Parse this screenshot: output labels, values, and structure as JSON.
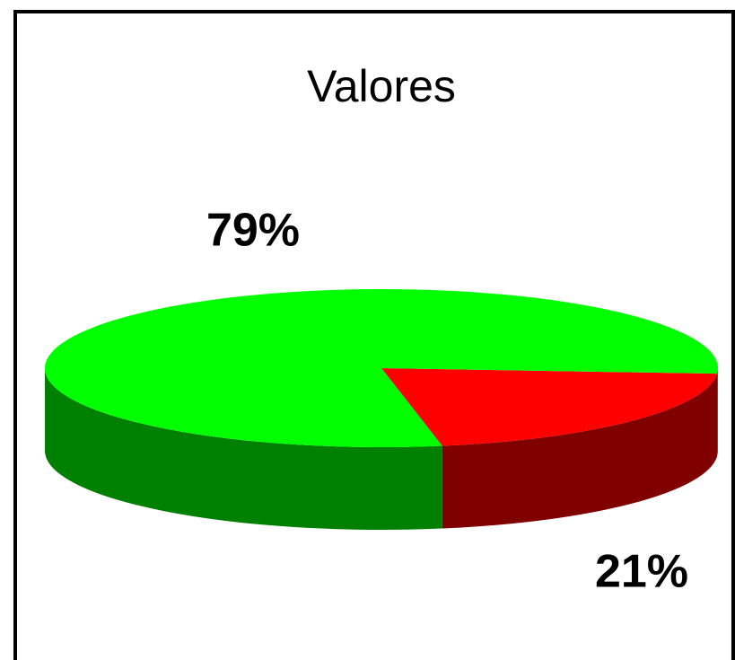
{
  "chart_data": {
    "type": "pie3d",
    "title": "Valores",
    "values": [
      21,
      79
    ],
    "value_labels": [
      "21%",
      "79%"
    ],
    "colors": [
      "#ff0000",
      "#00ff00"
    ],
    "side_colors": [
      "#800000",
      "#008000"
    ]
  }
}
